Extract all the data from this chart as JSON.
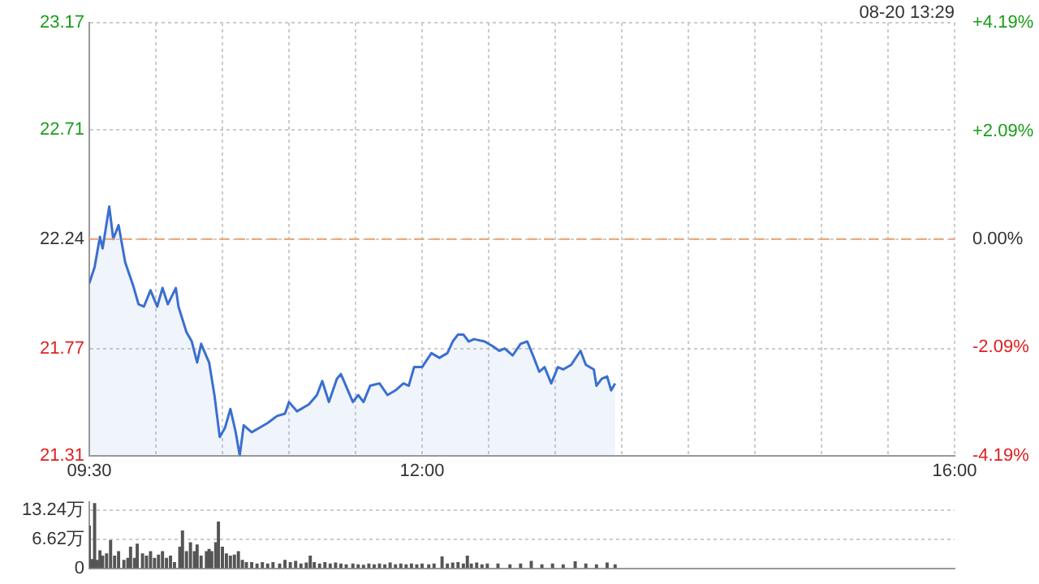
{
  "chart_data": [
    {
      "type": "area",
      "annotations": [
        "08-20 13:29"
      ],
      "x": [
        9.5,
        9.54,
        9.58,
        9.6,
        9.65,
        9.68,
        9.72,
        9.77,
        9.83,
        9.87,
        9.91,
        9.96,
        10.01,
        10.05,
        10.09,
        10.15,
        10.17,
        10.23,
        10.27,
        10.31,
        10.34,
        10.4,
        10.44,
        10.48,
        10.52,
        10.56,
        10.6,
        10.63,
        10.66,
        10.72,
        10.78,
        10.84,
        10.91,
        10.97,
        11.0,
        11.06,
        11.15,
        11.21,
        11.25,
        11.3,
        11.36,
        11.39,
        11.45,
        11.48,
        11.52,
        11.56,
        11.61,
        11.68,
        11.74,
        11.8,
        11.86,
        11.9,
        11.94,
        12.0,
        12.07,
        12.13,
        12.19,
        12.23,
        12.27,
        12.31,
        12.35,
        12.39,
        12.47,
        12.53,
        12.58,
        12.62,
        12.68,
        12.74,
        12.79,
        12.84,
        12.88,
        12.92,
        12.97,
        13.02,
        13.06,
        13.12,
        13.19,
        13.23,
        13.29,
        13.31,
        13.35,
        13.39,
        13.42,
        13.45
      ],
      "series": [
        {
          "color": "#3a6fd0",
          "values": [
            22.05,
            22.12,
            22.25,
            22.2,
            22.38,
            22.24,
            22.3,
            22.14,
            22.04,
            21.96,
            21.95,
            22.02,
            21.95,
            22.03,
            21.96,
            22.03,
            21.95,
            21.84,
            21.8,
            21.71,
            21.79,
            21.71,
            21.57,
            21.39,
            21.43,
            21.51,
            21.41,
            21.31,
            21.44,
            21.41,
            21.43,
            21.45,
            21.48,
            21.49,
            21.54,
            21.5,
            21.53,
            21.57,
            21.63,
            21.54,
            21.64,
            21.66,
            21.58,
            21.54,
            21.57,
            21.54,
            21.61,
            21.62,
            21.57,
            21.59,
            21.62,
            21.61,
            21.69,
            21.69,
            21.75,
            21.73,
            21.75,
            21.8,
            21.83,
            21.83,
            21.8,
            21.81,
            21.8,
            21.78,
            21.76,
            21.77,
            21.74,
            21.79,
            21.8,
            21.73,
            21.67,
            21.69,
            21.62,
            21.69,
            21.68,
            21.7,
            21.76,
            21.7,
            21.68,
            21.61,
            21.64,
            21.65,
            21.59,
            21.62
          ]
        }
      ],
      "xlim": [
        9.5,
        16
      ],
      "xticks": [
        {
          "value": 9.5,
          "label": "09:30"
        },
        {
          "value": 10,
          "label": null
        },
        {
          "value": 10.5,
          "label": null
        },
        {
          "value": 11,
          "label": null
        },
        {
          "value": 11.5,
          "label": null
        },
        {
          "value": 12,
          "label": "12:00"
        },
        {
          "value": 12.5,
          "label": null
        },
        {
          "value": 13,
          "label": null
        },
        {
          "value": 13.5,
          "label": null
        },
        {
          "value": 14,
          "label": null
        },
        {
          "value": 14.5,
          "label": null
        },
        {
          "value": 15,
          "label": null
        },
        {
          "value": 15.5,
          "label": null
        },
        {
          "value": 16,
          "label": "16:00"
        }
      ],
      "ylim": [
        21.31,
        23.17
      ],
      "yticks": [
        21.31,
        21.77,
        22.24,
        22.71,
        23.17
      ],
      "y2lim": [
        -4.19,
        4.19
      ],
      "y2ticks": [
        {
          "value": -4.19,
          "label": "-4.19%"
        },
        {
          "value": -2.09,
          "label": "-2.09%"
        },
        {
          "value": 0,
          "label": "0.00%"
        },
        {
          "value": 2.09,
          "label": "+2.09%"
        },
        {
          "value": 4.19,
          "label": "+4.19%"
        }
      ],
      "ref_lines": [
        {
          "axis": "y",
          "value": 22.24,
          "color": "#f0a070",
          "line_style": "dashed"
        }
      ],
      "grid": true,
      "legend": false
    },
    {
      "type": "bar",
      "tick_labels": "y",
      "x": [
        9.5,
        9.52,
        9.54,
        9.56,
        9.58,
        9.6,
        9.63,
        9.66,
        9.69,
        9.72,
        9.76,
        9.79,
        9.81,
        9.84,
        9.86,
        9.9,
        9.93,
        9.96,
        9.99,
        10.02,
        10.05,
        10.08,
        10.11,
        10.14,
        10.18,
        10.2,
        10.23,
        10.26,
        10.29,
        10.31,
        10.34,
        10.38,
        10.4,
        10.42,
        10.45,
        10.47,
        10.5,
        10.53,
        10.56,
        10.59,
        10.62,
        10.65,
        10.68,
        10.72,
        10.76,
        10.8,
        10.84,
        10.88,
        10.93,
        10.97,
        11.01,
        11.05,
        11.09,
        11.13,
        11.16,
        11.19,
        11.23,
        11.27,
        11.31,
        11.35,
        11.39,
        11.43,
        11.48,
        11.52,
        11.56,
        11.6,
        11.64,
        11.68,
        11.72,
        11.76,
        11.8,
        11.84,
        11.88,
        11.92,
        11.96,
        12.0,
        12.05,
        12.09,
        12.15,
        12.19,
        12.23,
        12.27,
        12.31,
        12.34,
        12.37,
        12.41,
        12.45,
        12.49,
        12.57,
        12.66,
        12.74,
        12.82,
        12.9,
        12.98,
        13.06,
        13.15,
        13.23,
        13.31,
        13.39,
        13.45
      ],
      "series": [
        {
          "color": "#555555",
          "values": [
            9.6,
            2.0,
            14.7,
            1.8,
            4.0,
            2.8,
            3.3,
            6.3,
            2.8,
            3.8,
            1.8,
            2.3,
            4.8,
            2.3,
            5.5,
            3.3,
            2.8,
            3.8,
            2.3,
            3.0,
            3.8,
            2.3,
            2.8,
            1.3,
            4.8,
            8.5,
            3.8,
            5.8,
            3.8,
            5.3,
            2.8,
            3.8,
            4.3,
            3.8,
            5.8,
            10.5,
            4.8,
            3.3,
            2.8,
            3.0,
            3.8,
            1.8,
            1.3,
            1.3,
            1.0,
            1.3,
            1.0,
            1.3,
            1.0,
            1.8,
            1.3,
            1.6,
            1.0,
            1.2,
            2.8,
            1.3,
            1.0,
            1.3,
            1.0,
            1.2,
            1.0,
            0.8,
            1.0,
            0.8,
            0.7,
            1.0,
            0.8,
            1.0,
            0.8,
            1.2,
            0.8,
            1.0,
            0.8,
            1.0,
            0.8,
            1.0,
            0.8,
            1.0,
            2.6,
            1.0,
            1.2,
            1.3,
            1.0,
            2.8,
            1.0,
            1.2,
            0.8,
            1.0,
            1.0,
            0.8,
            1.0,
            1.6,
            0.8,
            1.0,
            0.8,
            1.5,
            1.0,
            0.8,
            1.2,
            0.8
          ]
        }
      ],
      "xlim": [
        9.5,
        16
      ],
      "ylim": [
        0,
        15
      ],
      "yticks": [
        0,
        {
          "value": 6.62,
          "label": "6.62万"
        },
        {
          "value": 13.24,
          "label": "13.24万"
        }
      ],
      "grid": "y",
      "legend": false
    }
  ]
}
